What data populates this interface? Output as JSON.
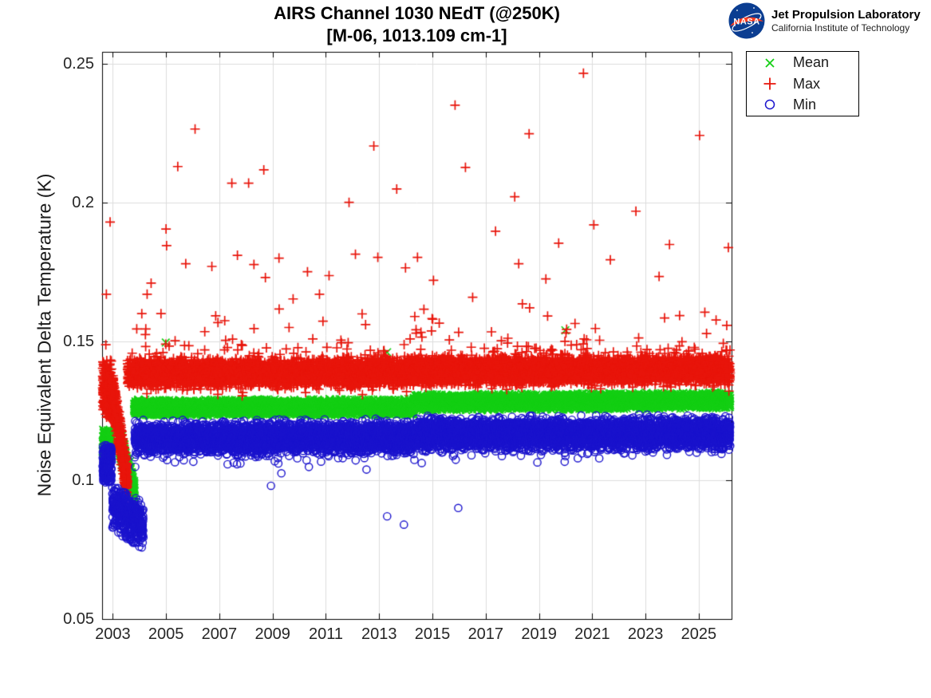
{
  "branding": {
    "nasa_text": "NASA",
    "line1": "Jet Propulsion Laboratory",
    "line2": "California Institute of Technology"
  },
  "chart_data": {
    "type": "scatter",
    "title_line1": "AIRS Channel 1030 NEdT (@250K)",
    "title_line2": "[M-06, 1013.109 cm-1]",
    "xlabel": "",
    "ylabel": "Noise Equivalent Delta Temperature (K)",
    "xlim": [
      2002.6,
      2026.23
    ],
    "ylim": [
      0.05,
      0.2543
    ],
    "xticks": [
      2003,
      2005,
      2007,
      2009,
      2011,
      2013,
      2015,
      2017,
      2019,
      2021,
      2023,
      2025
    ],
    "xtick_labels": [
      "2003",
      "2005",
      "2007",
      "2009",
      "2011",
      "2013",
      "2015",
      "2017",
      "2019",
      "2021",
      "2023",
      "2025"
    ],
    "yticks": [
      0.05,
      0.1,
      0.15,
      0.2,
      0.25
    ],
    "ytick_labels": [
      "0.05",
      "0.1",
      "0.15",
      "0.2",
      "0.25"
    ],
    "grid": true,
    "grid_color": "#dcdcdc",
    "frame_color": "#000000",
    "tick_length": 7,
    "legend_position": "top-right",
    "seed": 7,
    "series": [
      {
        "name": "Mean",
        "marker": "x",
        "color": "#14cf14",
        "size": 4.8,
        "segments": [
          {
            "t0": 2002.62,
            "t1": 2002.96,
            "n": 150,
            "c0": 0.1125,
            "c1": 0.1125,
            "sigma": 0.0028,
            "clamp": 0.0062
          },
          {
            "t0": 2003.25,
            "t1": 2003.82,
            "n": 330,
            "c0": 0.1135,
            "c1": 0.0955,
            "sigma": 0.0028,
            "clamp": 0.0062
          },
          {
            "t0": 2003.8,
            "t1": 2014.3,
            "n": 3900,
            "c0": 0.1261,
            "c1": 0.1263,
            "sigma": 0.0013,
            "clamp": 0.003
          },
          {
            "t0": 2014.3,
            "t1": 2026.18,
            "n": 4400,
            "c0": 0.128,
            "c1": 0.1287,
            "sigma": 0.0013,
            "clamp": 0.003
          }
        ],
        "outliers": [
          [
            2004.99,
            0.1496
          ],
          [
            2013.3,
            0.1461
          ],
          [
            2019.99,
            0.154
          ]
        ]
      },
      {
        "name": "Max",
        "marker": "+",
        "color": "#e8150b",
        "size": 6,
        "segments": [
          {
            "t0": 2002.62,
            "t1": 2002.96,
            "n": 230,
            "c0": 0.1325,
            "c1": 0.1325,
            "sigma": 0.0048,
            "clamp": 0.0112
          },
          {
            "t0": 2002.96,
            "t1": 2003.55,
            "n": 540,
            "c0": 0.1338,
            "c1": 0.0985,
            "sigma": 0.0034,
            "clamp": 0.008
          },
          {
            "t0": 2003.55,
            "t1": 2014.3,
            "n": 3950,
            "c0": 0.1386,
            "c1": 0.1388,
            "sigma": 0.0022,
            "clamp": 0.0058,
            "up": [
              0.02,
              0.02
            ],
            "dn": [
              0.004,
              0.004
            ]
          },
          {
            "t0": 2014.3,
            "t1": 2026.18,
            "n": 4400,
            "c0": 0.1395,
            "c1": 0.1397,
            "sigma": 0.0022,
            "clamp": 0.0058,
            "up": [
              0.02,
              0.02
            ],
            "dn": [
              0.003,
              0.004
            ]
          }
        ],
        "outliers": [
          [
            2002.74,
            0.1488
          ],
          [
            2002.76,
            0.167
          ],
          [
            2002.9,
            0.193
          ],
          [
            2003.9,
            0.1545
          ],
          [
            2004.09,
            0.16
          ],
          [
            2004.24,
            0.1545
          ],
          [
            2004.29,
            0.167
          ],
          [
            2004.44,
            0.171
          ],
          [
            2004.81,
            0.16
          ],
          [
            2005.0,
            0.1905
          ],
          [
            2005.02,
            0.1845
          ],
          [
            2005.44,
            0.213
          ],
          [
            2005.74,
            0.178
          ],
          [
            2006.09,
            0.2265
          ],
          [
            2006.72,
            0.177
          ],
          [
            2007.47,
            0.207
          ],
          [
            2007.68,
            0.181
          ],
          [
            2008.1,
            0.207
          ],
          [
            2008.3,
            0.1777
          ],
          [
            2008.67,
            0.2118
          ],
          [
            2008.73,
            0.173
          ],
          [
            2009.24,
            0.18
          ],
          [
            2009.77,
            0.1653
          ],
          [
            2010.31,
            0.1751
          ],
          [
            2010.76,
            0.167
          ],
          [
            2011.12,
            0.1737
          ],
          [
            2011.87,
            0.2001
          ],
          [
            2012.11,
            0.1814
          ],
          [
            2012.8,
            0.2204
          ],
          [
            2012.95,
            0.1803
          ],
          [
            2013.66,
            0.2049
          ],
          [
            2013.99,
            0.1765
          ],
          [
            2014.44,
            0.1803
          ],
          [
            2015.04,
            0.172
          ],
          [
            2015.85,
            0.2351
          ],
          [
            2016.24,
            0.2127
          ],
          [
            2016.51,
            0.1659
          ],
          [
            2017.37,
            0.1897
          ],
          [
            2018.09,
            0.2021
          ],
          [
            2018.24,
            0.178
          ],
          [
            2018.63,
            0.2248
          ],
          [
            2019.26,
            0.1725
          ],
          [
            2019.74,
            0.1854
          ],
          [
            2020.67,
            0.2466
          ],
          [
            2021.06,
            0.192
          ],
          [
            2021.68,
            0.1794
          ],
          [
            2022.64,
            0.1969
          ],
          [
            2023.51,
            0.1734
          ],
          [
            2023.9,
            0.1849
          ],
          [
            2024.28,
            0.1593
          ],
          [
            2025.03,
            0.2242
          ],
          [
            2026.11,
            0.1838
          ]
        ]
      },
      {
        "name": "Min",
        "marker": "o",
        "color": "#1a13cd",
        "size": 4.6,
        "segments": [
          {
            "t0": 2002.62,
            "t1": 2002.96,
            "n": 170,
            "c0": 0.106,
            "c1": 0.106,
            "sigma": 0.0038,
            "clamp": 0.0068
          },
          {
            "t0": 2002.98,
            "t1": 2004.15,
            "n": 430,
            "c0": 0.0905,
            "c1": 0.0835,
            "sigma": 0.004,
            "clamp": 0.0085
          },
          {
            "t0": 2003.82,
            "t1": 2014.3,
            "n": 3900,
            "c0": 0.115,
            "c1": 0.1154,
            "sigma": 0.0026,
            "clamp": 0.0068,
            "dn": [
              0.006,
              0.0055
            ]
          },
          {
            "t0": 2014.3,
            "t1": 2026.18,
            "n": 4400,
            "c0": 0.1166,
            "c1": 0.1169,
            "sigma": 0.0026,
            "clamp": 0.0068,
            "dn": [
              0.005,
              0.0055
            ]
          }
        ],
        "outliers": [
          [
            2008.94,
            0.098
          ],
          [
            2009.33,
            0.1025
          ],
          [
            2013.3,
            0.087
          ],
          [
            2013.93,
            0.084
          ],
          [
            2015.97,
            0.09
          ]
        ]
      }
    ]
  }
}
